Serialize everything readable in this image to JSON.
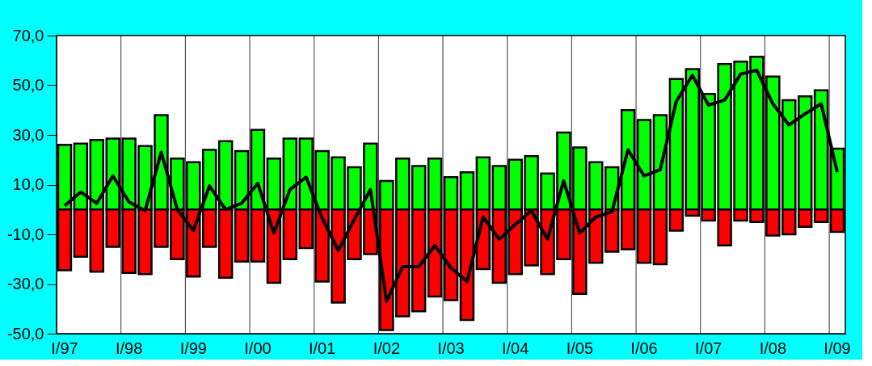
{
  "chart_data": {
    "type": "bar",
    "categories": [
      "I/97",
      null,
      null,
      null,
      "I/98",
      null,
      null,
      null,
      "I/99",
      null,
      null,
      null,
      "I/00",
      null,
      null,
      null,
      "I/01",
      null,
      null,
      null,
      "I/02",
      null,
      null,
      null,
      "I/03",
      null,
      null,
      null,
      "I/04",
      null,
      null,
      null,
      "I/05",
      null,
      null,
      null,
      "I/06",
      null,
      null,
      null,
      "I/07",
      null,
      null,
      null,
      "I/08",
      null,
      null,
      null,
      "I/09"
    ],
    "series": [
      {
        "color": "#00ff00",
        "values": [
          26,
          26.5,
          28,
          28.5,
          28.5,
          25.5,
          38,
          20.5,
          19,
          24,
          27.5,
          23.5,
          32,
          20.5,
          28.5,
          28.5,
          23.5,
          21,
          17,
          26.5,
          11.5,
          20.5,
          17.5,
          20.5,
          13,
          15,
          21,
          17.5,
          20,
          21.5,
          14.5,
          31,
          25,
          19,
          17,
          40,
          36,
          38,
          52.5,
          56.5,
          46.5,
          58.5,
          59.5,
          61.5,
          53.5,
          44,
          45.5,
          48,
          24.5
        ]
      },
      {
        "color": "#ff0000",
        "values": [
          -24.5,
          -19,
          -25,
          -15,
          -25.5,
          -26,
          -15,
          -20,
          -27,
          -15,
          -27.5,
          -21,
          -21,
          -29.5,
          -20,
          -15.5,
          -29,
          -37.5,
          -20,
          -18,
          -48.5,
          -43,
          -41,
          -35,
          -36.5,
          -44.5,
          -24,
          -29.5,
          -26,
          -22.5,
          -26,
          -20,
          -34,
          -21.5,
          -17,
          -16,
          -21.5,
          -22,
          -8.5,
          -2.5,
          -4.5,
          -14.5,
          -4.5,
          -5,
          -10.5,
          -10,
          -7,
          -5,
          -9
        ]
      },
      {
        "type": "line",
        "color": "#000000",
        "values": [
          1.5,
          7,
          2.5,
          13.5,
          3,
          -0.5,
          23,
          0,
          -8.5,
          9.5,
          0,
          2.5,
          10.5,
          -9.5,
          8,
          13,
          -3.5,
          -16.5,
          -4,
          8,
          -37,
          -23,
          -23,
          -14.5,
          -23.5,
          -29,
          -3,
          -12,
          -6,
          -0.5,
          -12,
          11.5,
          -9.5,
          -3,
          -1,
          24,
          13.5,
          16,
          43.5,
          54,
          42,
          44,
          54.5,
          56,
          42.5,
          34,
          38.5,
          42.5,
          15
        ]
      }
    ],
    "ylim": [
      -50,
      70
    ],
    "yticks": [
      {
        "value": -50,
        "label": "-50,0"
      },
      {
        "value": -30,
        "label": "-30,0"
      },
      {
        "value": -10,
        "label": "-10,0"
      },
      {
        "value": 10,
        "label": "10,0"
      },
      {
        "value": 30,
        "label": "30,0"
      },
      {
        "value": 50,
        "label": "50,0"
      },
      {
        "value": 70,
        "label": "70,0"
      }
    ],
    "stacked": true,
    "grid": "x",
    "marker": "none",
    "line_style": "solid"
  }
}
